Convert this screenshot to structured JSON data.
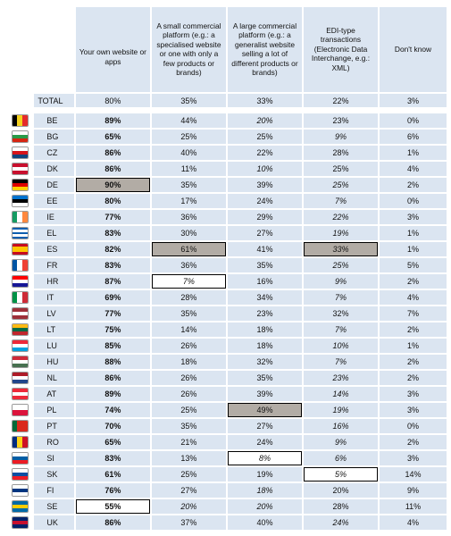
{
  "header": {
    "columns": [
      "Your own website or apps",
      "A small commercial platform (e.g.: a specialised website or one with only a few products or brands)",
      "A large commercial platform (e.g.: a generalist website selling a lot of different products or brands)",
      "EDI-type transactions (Electronic Data Interchange, e.g.: XML)",
      "Don't know"
    ]
  },
  "total": {
    "label": "TOTAL",
    "values": [
      "80%",
      "35%",
      "33%",
      "22%",
      "3%"
    ]
  },
  "rows": [
    {
      "code": "BE",
      "flag": {
        "dir": "v",
        "colors": [
          "#000000",
          "#f4d11f",
          "#e52b2b"
        ]
      },
      "values": [
        "89%",
        "44%",
        "20%",
        "23%",
        "0%"
      ]
    },
    {
      "code": "BG",
      "flag": {
        "dir": "h",
        "colors": [
          "#ffffff",
          "#2a9b49",
          "#d62612"
        ]
      },
      "values": [
        "65%",
        "25%",
        "25%",
        "9%",
        "6%"
      ]
    },
    {
      "code": "CZ",
      "flag": {
        "dir": "h",
        "colors": [
          "#ffffff",
          "#d7141a",
          "#11457e"
        ]
      },
      "values": [
        "86%",
        "40%",
        "22%",
        "28%",
        "1%"
      ]
    },
    {
      "code": "DK",
      "flag": {
        "dir": "h",
        "colors": [
          "#c8102e",
          "#ffffff",
          "#c8102e"
        ]
      },
      "values": [
        "86%",
        "11%",
        "10%",
        "25%",
        "4%"
      ]
    },
    {
      "code": "DE",
      "flag": {
        "dir": "h",
        "colors": [
          "#000000",
          "#dd0000",
          "#ffce00"
        ]
      },
      "values": [
        "90%",
        "35%",
        "39%",
        "25%",
        "2%"
      ]
    },
    {
      "code": "EE",
      "flag": {
        "dir": "h",
        "colors": [
          "#0072ce",
          "#000000",
          "#ffffff"
        ]
      },
      "values": [
        "80%",
        "17%",
        "24%",
        "7%",
        "0%"
      ]
    },
    {
      "code": "IE",
      "flag": {
        "dir": "v",
        "colors": [
          "#169b62",
          "#ffffff",
          "#ff883e"
        ]
      },
      "values": [
        "77%",
        "36%",
        "29%",
        "22%",
        "3%"
      ]
    },
    {
      "code": "EL",
      "flag": {
        "dir": "h",
        "colors": [
          "#0d5eaf",
          "#ffffff",
          "#0d5eaf",
          "#ffffff",
          "#0d5eaf"
        ]
      },
      "values": [
        "83%",
        "30%",
        "27%",
        "19%",
        "1%"
      ]
    },
    {
      "code": "ES",
      "flag": {
        "dir": "h",
        "colors": [
          "#c60b1e",
          "#ffc400",
          "#ffc400",
          "#c60b1e"
        ]
      },
      "values": [
        "82%",
        "61%",
        "41%",
        "33%",
        "1%"
      ]
    },
    {
      "code": "FR",
      "flag": {
        "dir": "v",
        "colors": [
          "#0055a4",
          "#ffffff",
          "#ef4135"
        ]
      },
      "values": [
        "83%",
        "36%",
        "35%",
        "25%",
        "5%"
      ]
    },
    {
      "code": "HR",
      "flag": {
        "dir": "h",
        "colors": [
          "#ff0000",
          "#ffffff",
          "#171796"
        ]
      },
      "values": [
        "87%",
        "7%",
        "16%",
        "9%",
        "2%"
      ]
    },
    {
      "code": "IT",
      "flag": {
        "dir": "v",
        "colors": [
          "#009246",
          "#ffffff",
          "#ce2b37"
        ]
      },
      "values": [
        "69%",
        "28%",
        "34%",
        "7%",
        "4%"
      ]
    },
    {
      "code": "LV",
      "flag": {
        "dir": "h",
        "colors": [
          "#9e3039",
          "#ffffff",
          "#9e3039"
        ]
      },
      "values": [
        "77%",
        "35%",
        "23%",
        "32%",
        "7%"
      ]
    },
    {
      "code": "LT",
      "flag": {
        "dir": "h",
        "colors": [
          "#fdb913",
          "#006a44",
          "#c1272d"
        ]
      },
      "values": [
        "75%",
        "14%",
        "18%",
        "7%",
        "2%"
      ]
    },
    {
      "code": "LU",
      "flag": {
        "dir": "h",
        "colors": [
          "#ed2939",
          "#ffffff",
          "#00a1de"
        ]
      },
      "values": [
        "85%",
        "26%",
        "18%",
        "10%",
        "1%"
      ]
    },
    {
      "code": "HU",
      "flag": {
        "dir": "h",
        "colors": [
          "#ce2939",
          "#ffffff",
          "#477050"
        ]
      },
      "values": [
        "88%",
        "18%",
        "32%",
        "7%",
        "2%"
      ]
    },
    {
      "code": "NL",
      "flag": {
        "dir": "h",
        "colors": [
          "#ae1c28",
          "#ffffff",
          "#21468b"
        ]
      },
      "values": [
        "86%",
        "26%",
        "35%",
        "23%",
        "2%"
      ]
    },
    {
      "code": "AT",
      "flag": {
        "dir": "h",
        "colors": [
          "#ed2939",
          "#ffffff",
          "#ed2939"
        ]
      },
      "values": [
        "89%",
        "26%",
        "39%",
        "14%",
        "3%"
      ]
    },
    {
      "code": "PL",
      "flag": {
        "dir": "h",
        "colors": [
          "#ffffff",
          "#dc143c"
        ]
      },
      "values": [
        "74%",
        "25%",
        "49%",
        "19%",
        "3%"
      ]
    },
    {
      "code": "PT",
      "flag": {
        "dir": "v",
        "colors": [
          "#046a38",
          "#da291c",
          "#da291c"
        ]
      },
      "values": [
        "70%",
        "35%",
        "27%",
        "16%",
        "0%"
      ]
    },
    {
      "code": "RO",
      "flag": {
        "dir": "v",
        "colors": [
          "#002b7f",
          "#fcd116",
          "#ce1126"
        ]
      },
      "values": [
        "65%",
        "21%",
        "24%",
        "9%",
        "2%"
      ]
    },
    {
      "code": "SI",
      "flag": {
        "dir": "h",
        "colors": [
          "#ffffff",
          "#005da4",
          "#ed1c24"
        ]
      },
      "values": [
        "83%",
        "13%",
        "8%",
        "6%",
        "3%"
      ]
    },
    {
      "code": "SK",
      "flag": {
        "dir": "h",
        "colors": [
          "#ffffff",
          "#0b4ea2",
          "#ee1c25"
        ]
      },
      "values": [
        "61%",
        "25%",
        "19%",
        "5%",
        "14%"
      ]
    },
    {
      "code": "FI",
      "flag": {
        "dir": "h",
        "colors": [
          "#ffffff",
          "#003580",
          "#ffffff"
        ]
      },
      "values": [
        "76%",
        "27%",
        "18%",
        "20%",
        "9%"
      ]
    },
    {
      "code": "SE",
      "flag": {
        "dir": "h",
        "colors": [
          "#006aa7",
          "#fecc00",
          "#006aa7"
        ]
      },
      "values": [
        "55%",
        "20%",
        "20%",
        "28%",
        "11%"
      ]
    },
    {
      "code": "UK",
      "flag": {
        "dir": "h",
        "colors": [
          "#012169",
          "#c8102e",
          "#012169"
        ]
      },
      "values": [
        "86%",
        "37%",
        "40%",
        "24%",
        "4%"
      ]
    }
  ],
  "styles": {
    "bold_column": 0,
    "italic": [
      [
        0,
        2
      ],
      [
        1,
        3
      ],
      [
        3,
        2
      ],
      [
        4,
        3
      ],
      [
        5,
        3
      ],
      [
        6,
        3
      ],
      [
        7,
        3
      ],
      [
        8,
        3
      ],
      [
        9,
        3
      ],
      [
        10,
        1
      ],
      [
        10,
        3
      ],
      [
        11,
        3
      ],
      [
        13,
        3
      ],
      [
        14,
        3
      ],
      [
        15,
        3
      ],
      [
        16,
        3
      ],
      [
        17,
        3
      ],
      [
        18,
        3
      ],
      [
        19,
        3
      ],
      [
        20,
        3
      ],
      [
        21,
        2
      ],
      [
        21,
        3
      ],
      [
        22,
        3
      ],
      [
        23,
        2
      ],
      [
        24,
        1
      ],
      [
        24,
        2
      ],
      [
        25,
        3
      ]
    ],
    "highlight": [
      [
        4,
        0
      ],
      [
        8,
        1
      ],
      [
        8,
        3
      ],
      [
        18,
        2
      ]
    ],
    "boxed": [
      [
        10,
        1
      ],
      [
        21,
        2
      ],
      [
        22,
        3
      ],
      [
        24,
        0
      ]
    ],
    "colors": {
      "cell_bg": "#dbe5f1",
      "highlight_bg": "#b2aca5"
    }
  }
}
